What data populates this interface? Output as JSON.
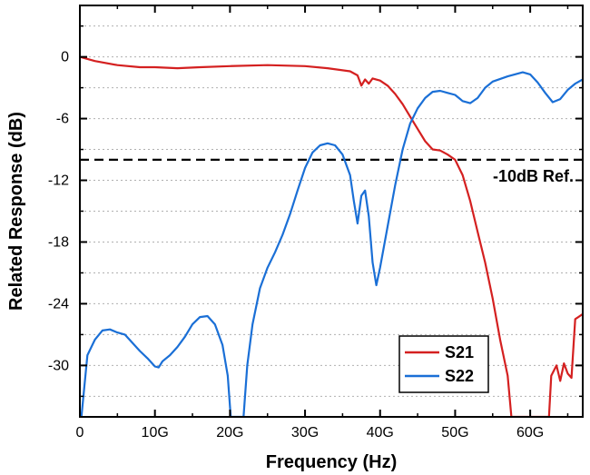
{
  "chart_data": {
    "type": "line",
    "xlabel": "Frequency (Hz)",
    "ylabel": "Related Response (dB)",
    "xlim": [
      0,
      67
    ],
    "ylim": [
      -35,
      5
    ],
    "x_ticks": [
      0,
      10,
      20,
      30,
      40,
      50,
      60
    ],
    "x_tick_labels": [
      "0",
      "10G",
      "20G",
      "30G",
      "40G",
      "50G",
      "60G"
    ],
    "y_ticks": [
      0,
      -6,
      -12,
      -18,
      -24,
      -30
    ],
    "y_tick_labels": [
      "0",
      "-6",
      "-12",
      "-18",
      "-24",
      "-30"
    ],
    "grid": "horizontal dotted",
    "legend_position": "bottom-right",
    "reference_line": {
      "y": -10,
      "label": "-10dB Ref."
    },
    "series": [
      {
        "name": "S21",
        "color": "#d42020",
        "points": [
          [
            0,
            0
          ],
          [
            2,
            -0.4
          ],
          [
            5,
            -0.8
          ],
          [
            8,
            -1.0
          ],
          [
            10,
            -1.0
          ],
          [
            13,
            -1.1
          ],
          [
            16,
            -1.0
          ],
          [
            20,
            -0.9
          ],
          [
            25,
            -0.8
          ],
          [
            30,
            -0.9
          ],
          [
            33,
            -1.1
          ],
          [
            36,
            -1.4
          ],
          [
            37,
            -1.8
          ],
          [
            37.5,
            -2.8
          ],
          [
            38,
            -2.2
          ],
          [
            38.5,
            -2.6
          ],
          [
            39,
            -2.1
          ],
          [
            40,
            -2.3
          ],
          [
            41,
            -2.8
          ],
          [
            42,
            -3.6
          ],
          [
            43,
            -4.6
          ],
          [
            44,
            -5.8
          ],
          [
            45,
            -7.0
          ],
          [
            46,
            -8.2
          ],
          [
            47,
            -9.0
          ],
          [
            48,
            -9.1
          ],
          [
            49,
            -9.5
          ],
          [
            50,
            -10.0
          ],
          [
            51,
            -11.5
          ],
          [
            52,
            -14.0
          ],
          [
            53,
            -17.0
          ],
          [
            54,
            -20.0
          ],
          [
            55,
            -23.5
          ],
          [
            56,
            -27.5
          ],
          [
            57,
            -31.0
          ],
          [
            57.5,
            -35.0
          ],
          [
            62.5,
            -35.0
          ],
          [
            62.8,
            -31.0
          ],
          [
            63.5,
            -30.0
          ],
          [
            64,
            -31.5
          ],
          [
            64.5,
            -29.8
          ],
          [
            65,
            -30.8
          ],
          [
            65.5,
            -31.2
          ],
          [
            66,
            -25.5
          ],
          [
            67,
            -25.0
          ]
        ]
      },
      {
        "name": "S22",
        "color": "#1a6fd6",
        "points": [
          [
            0.2,
            -35.0
          ],
          [
            0.6,
            -32.0
          ],
          [
            1,
            -29.0
          ],
          [
            2,
            -27.5
          ],
          [
            3,
            -26.6
          ],
          [
            4,
            -26.5
          ],
          [
            5,
            -26.8
          ],
          [
            6,
            -27.0
          ],
          [
            7,
            -27.8
          ],
          [
            8,
            -28.6
          ],
          [
            9,
            -29.3
          ],
          [
            10,
            -30.1
          ],
          [
            10.5,
            -30.2
          ],
          [
            11,
            -29.6
          ],
          [
            12,
            -29.0
          ],
          [
            13,
            -28.2
          ],
          [
            14,
            -27.2
          ],
          [
            15,
            -26.0
          ],
          [
            16,
            -25.3
          ],
          [
            17,
            -25.2
          ],
          [
            18,
            -26.0
          ],
          [
            19,
            -28.0
          ],
          [
            19.7,
            -31.0
          ],
          [
            20.1,
            -35.0
          ],
          [
            21.8,
            -35.0
          ],
          [
            22.3,
            -30.0
          ],
          [
            23,
            -26.0
          ],
          [
            24,
            -22.5
          ],
          [
            25,
            -20.5
          ],
          [
            26,
            -19.0
          ],
          [
            27,
            -17.3
          ],
          [
            28,
            -15.3
          ],
          [
            29,
            -13.0
          ],
          [
            30,
            -10.8
          ],
          [
            31,
            -9.3
          ],
          [
            32,
            -8.6
          ],
          [
            33,
            -8.4
          ],
          [
            34,
            -8.6
          ],
          [
            35,
            -9.5
          ],
          [
            36,
            -11.5
          ],
          [
            36.5,
            -14.0
          ],
          [
            37,
            -16.2
          ],
          [
            37.5,
            -13.5
          ],
          [
            38,
            -13.0
          ],
          [
            38.5,
            -15.5
          ],
          [
            39,
            -20.0
          ],
          [
            39.5,
            -22.2
          ],
          [
            40,
            -20.5
          ],
          [
            41,
            -16.5
          ],
          [
            42,
            -12.5
          ],
          [
            43,
            -9.0
          ],
          [
            44,
            -6.5
          ],
          [
            45,
            -5.0
          ],
          [
            46,
            -4.0
          ],
          [
            47,
            -3.4
          ],
          [
            48,
            -3.3
          ],
          [
            49,
            -3.5
          ],
          [
            50,
            -3.7
          ],
          [
            51,
            -4.3
          ],
          [
            52,
            -4.5
          ],
          [
            53,
            -4.0
          ],
          [
            54,
            -3.0
          ],
          [
            55,
            -2.4
          ],
          [
            57,
            -1.9
          ],
          [
            59,
            -1.5
          ],
          [
            60,
            -1.7
          ],
          [
            61,
            -2.5
          ],
          [
            62,
            -3.5
          ],
          [
            63,
            -4.4
          ],
          [
            64,
            -4.1
          ],
          [
            65,
            -3.2
          ],
          [
            66,
            -2.6
          ],
          [
            67,
            -2.2
          ]
        ]
      }
    ]
  }
}
